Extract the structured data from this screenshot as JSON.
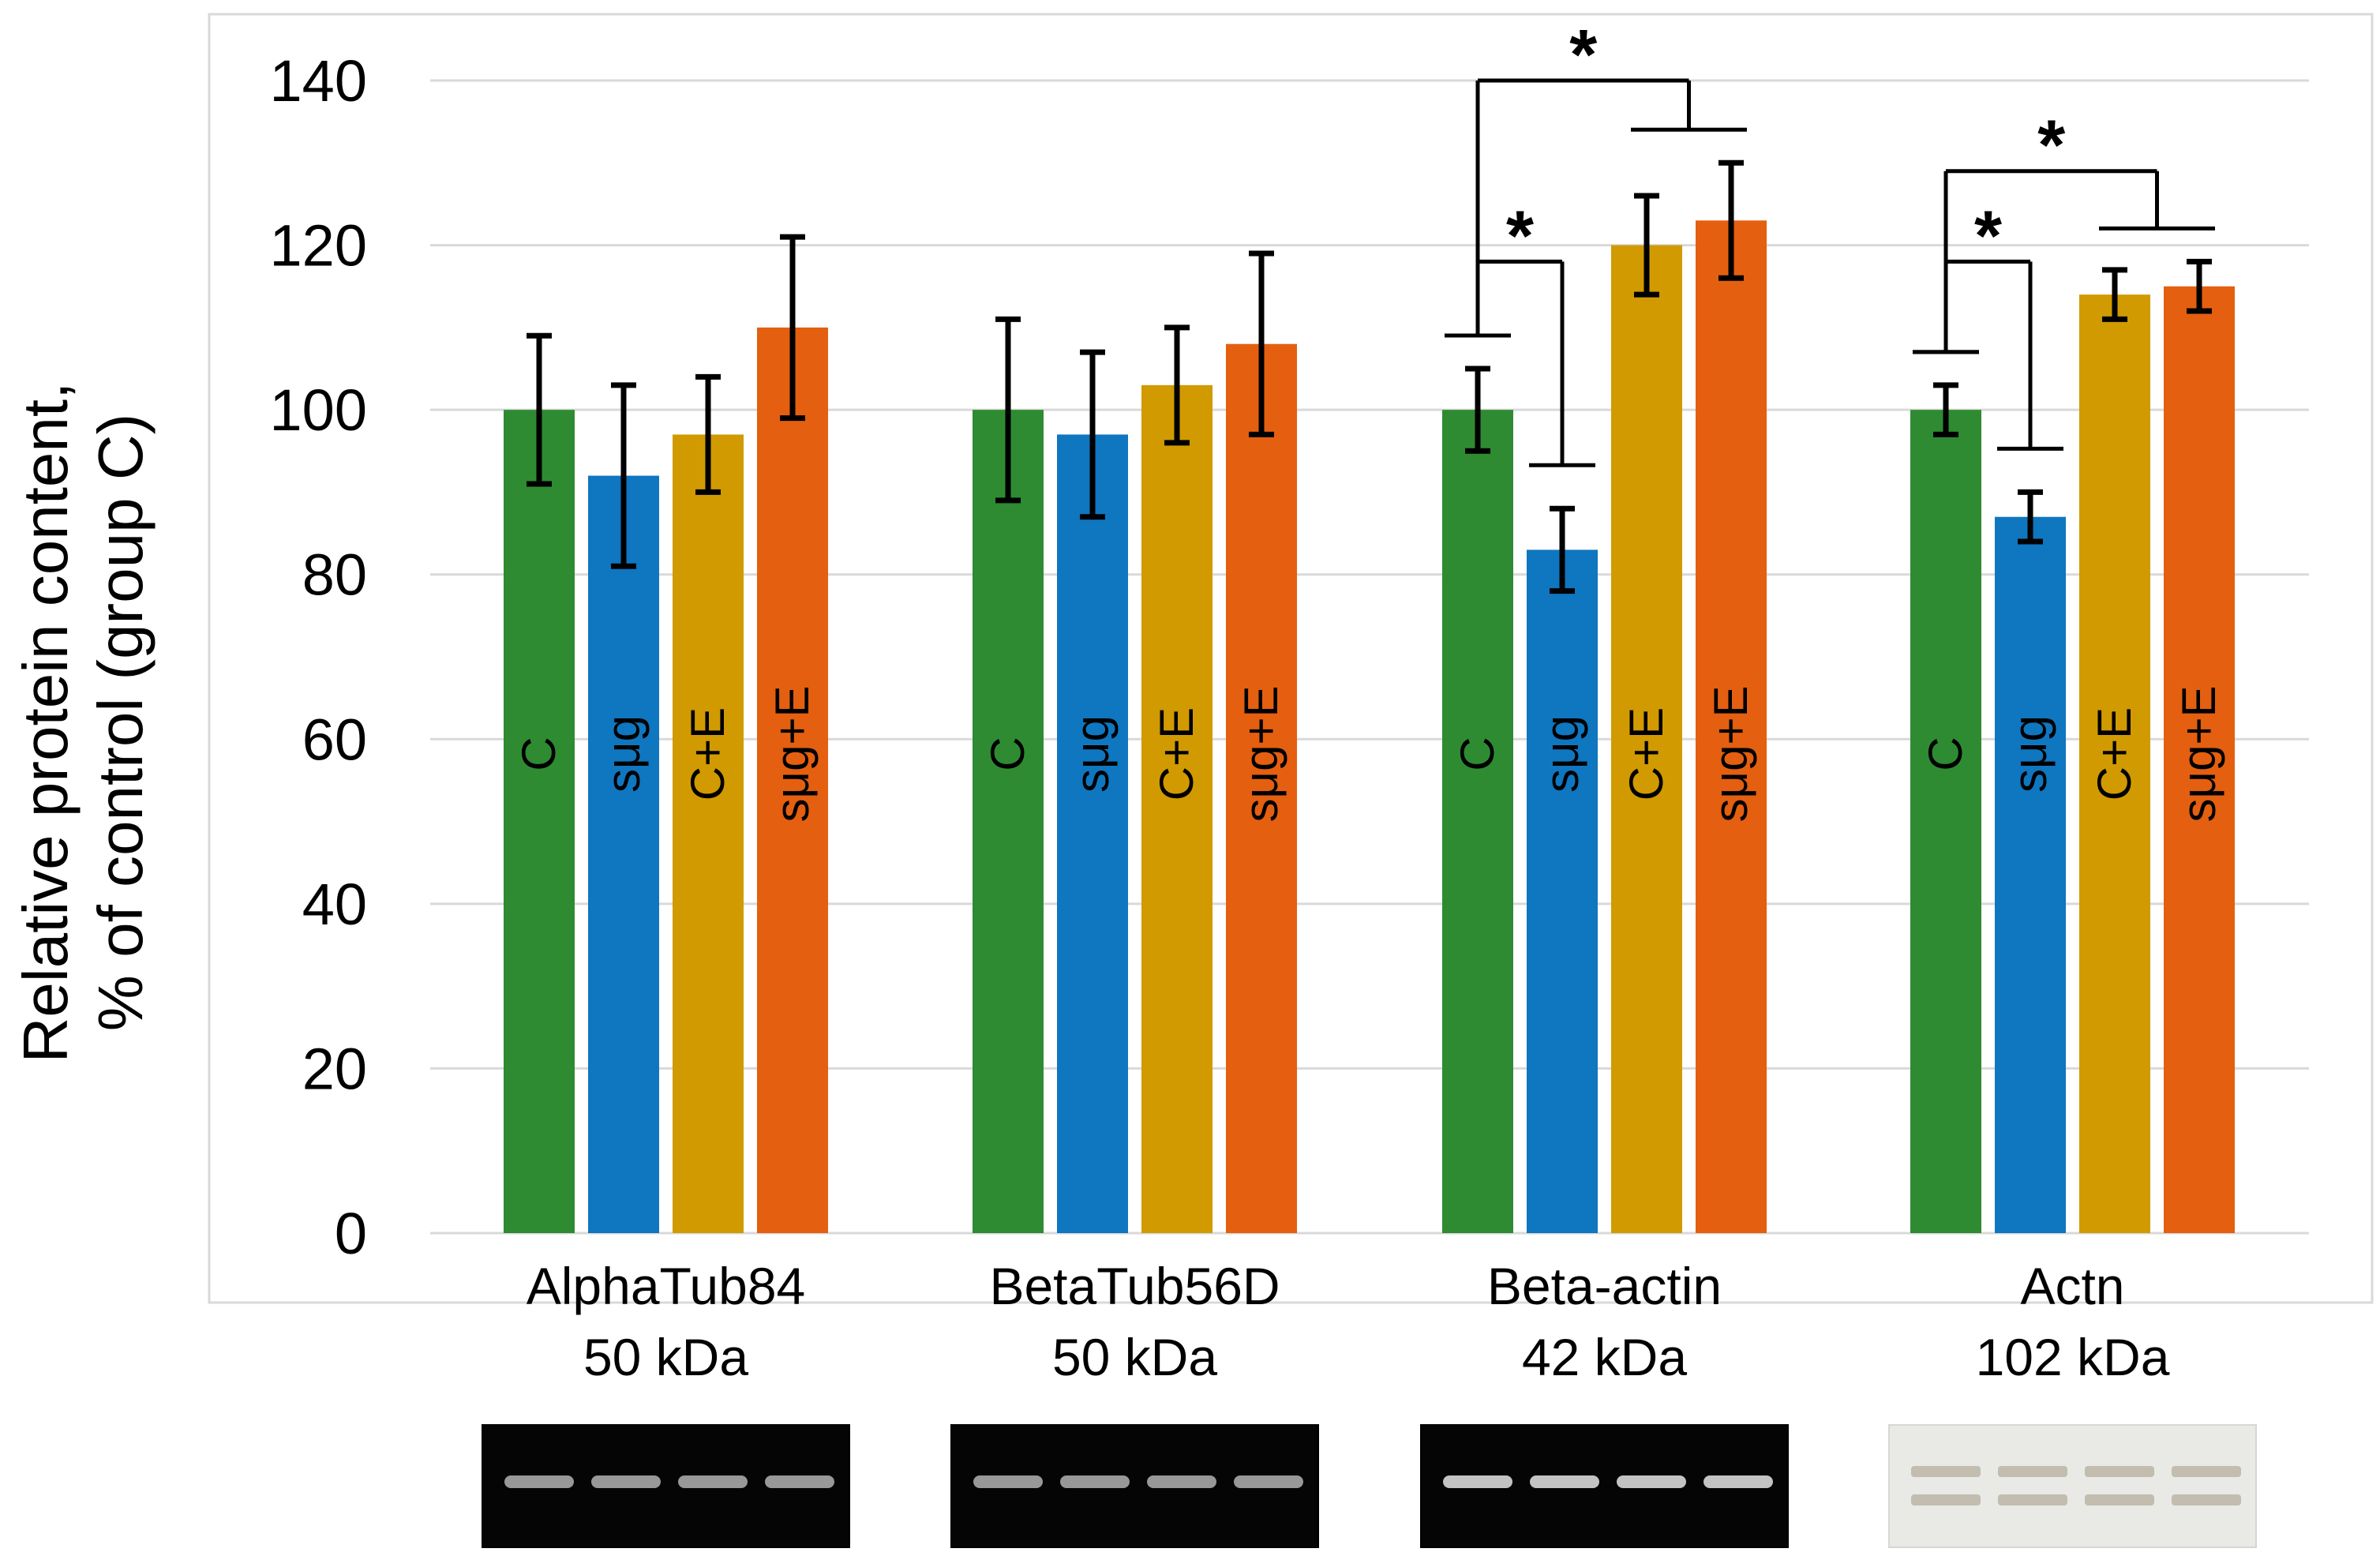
{
  "chart_data": {
    "type": "bar",
    "title": "",
    "xlabel": "",
    "ylabel_lines": [
      "Relative protein content,",
      "% of control (group C)"
    ],
    "ylim": [
      0,
      140
    ],
    "yticks": [
      "0",
      "20",
      "40",
      "60",
      "80",
      "100",
      "120",
      "140"
    ],
    "grid": true,
    "categories": [
      {
        "name": "AlphaTub84",
        "kda": "50 kDa",
        "blot": "dark"
      },
      {
        "name": "BetaTub56D",
        "kda": "50 kDa",
        "blot": "dark"
      },
      {
        "name": "Beta-actin",
        "kda": "42 kDa",
        "blot": "dark"
      },
      {
        "name": "Actn",
        "kda": "102 kDa",
        "blot": "light"
      }
    ],
    "series": [
      {
        "name": "C",
        "color": "#2e8b32",
        "values": [
          100,
          100,
          100,
          100
        ],
        "errors": [
          9,
          11,
          5,
          3
        ]
      },
      {
        "name": "sμg",
        "color": "#0f76c0",
        "values": [
          92,
          97,
          83,
          87
        ],
        "errors": [
          11,
          10,
          5,
          3
        ]
      },
      {
        "name": "C+E",
        "color": "#d19a00",
        "values": [
          97,
          103,
          120,
          114
        ],
        "errors": [
          7,
          7,
          6,
          3
        ]
      },
      {
        "name": "sμg+E",
        "color": "#e45f10",
        "values": [
          110,
          108,
          123,
          115
        ],
        "errors": [
          11,
          11,
          7,
          3
        ]
      }
    ],
    "significance": [
      {
        "category": 2,
        "type": "pair",
        "from": 0,
        "to": 1,
        "label": "*",
        "y": 118
      },
      {
        "category": 2,
        "type": "group",
        "from": 0,
        "to": [
          2,
          3
        ],
        "label": "*",
        "y": 140
      },
      {
        "category": 3,
        "type": "pair",
        "from": 0,
        "to": 1,
        "label": "*",
        "y": 118
      },
      {
        "category": 3,
        "type": "group",
        "from": 0,
        "to": [
          2,
          3
        ],
        "label": "*",
        "y": 129
      }
    ]
  }
}
